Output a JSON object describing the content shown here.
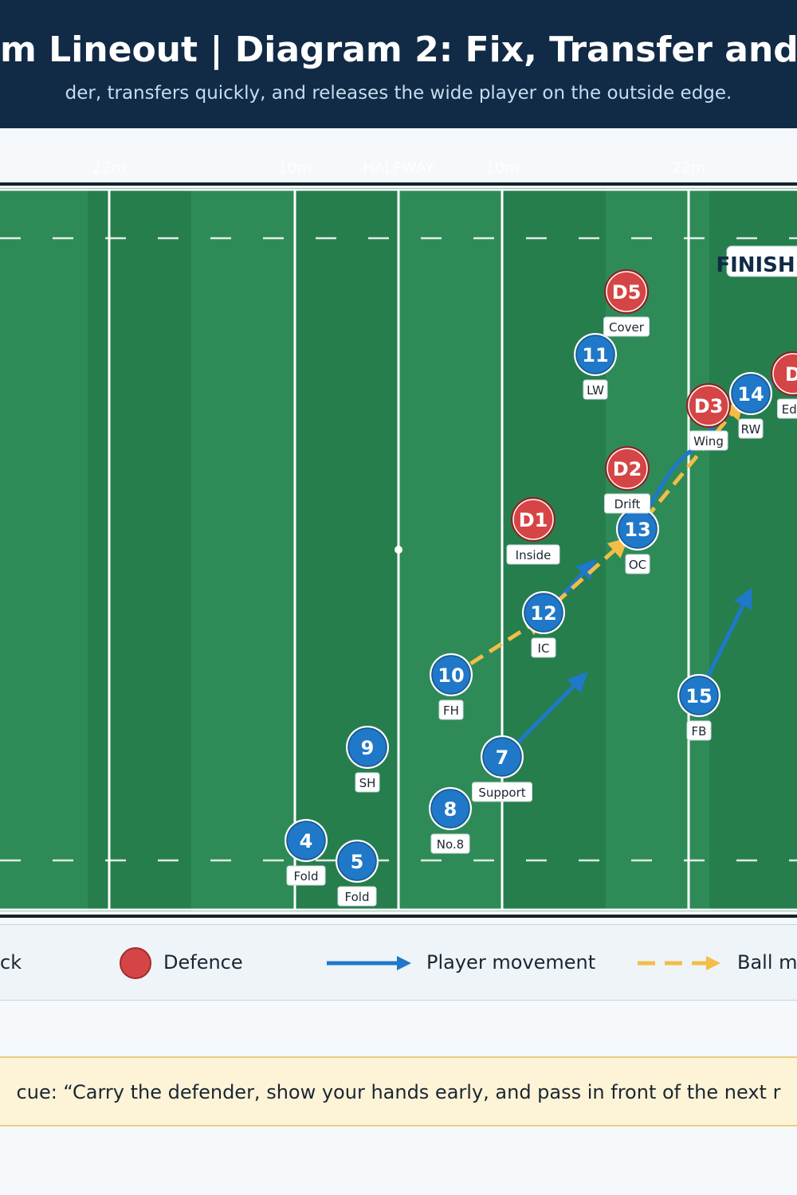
{
  "header": {
    "title": "m Lineout | Diagram 2: Fix, Transfer and F",
    "subtitle": "der, transfers quickly, and releases the wide player on the outside edge."
  },
  "field": {
    "markings": [
      "22m",
      "10m",
      "HALFWAY",
      "10m",
      "22m"
    ],
    "finish_label": "FINISH"
  },
  "players": [
    {
      "id": "11",
      "role": "LW",
      "team": "attack"
    },
    {
      "id": "14",
      "role": "RW",
      "team": "attack"
    },
    {
      "id": "13",
      "role": "OC",
      "team": "attack"
    },
    {
      "id": "12",
      "role": "IC",
      "team": "attack"
    },
    {
      "id": "10",
      "role": "FH",
      "team": "attack"
    },
    {
      "id": "15",
      "role": "FB",
      "team": "attack"
    },
    {
      "id": "9",
      "role": "SH",
      "team": "attack"
    },
    {
      "id": "7",
      "role": "Support",
      "team": "attack"
    },
    {
      "id": "8",
      "role": "No.8",
      "team": "attack"
    },
    {
      "id": "4",
      "role": "Fold",
      "team": "attack"
    },
    {
      "id": "5",
      "role": "Fold",
      "team": "attack"
    },
    {
      "id": "D5",
      "role": "Cover",
      "team": "defence"
    },
    {
      "id": "D",
      "role": "Edg",
      "team": "defence"
    },
    {
      "id": "D3",
      "role": "Wing",
      "team": "defence"
    },
    {
      "id": "D2",
      "role": "Drift",
      "team": "defence"
    },
    {
      "id": "D1",
      "role": "Inside",
      "team": "defence"
    }
  ],
  "legend": {
    "attack": "ck",
    "defence": "Defence",
    "player_movement": "Player movement",
    "ball_movement": "Ball m"
  },
  "cue": "cue: “Carry the defender, show your hands early, and pass in front of the next r",
  "colors": {
    "header_bg": "#112a46",
    "pitch_light": "#2e8b57",
    "pitch_dark": "#267e4d",
    "attack": "#1f78c8",
    "defence": "#d64545",
    "ball": "#f3bd48",
    "cue_bg": "#fdf3d6"
  }
}
